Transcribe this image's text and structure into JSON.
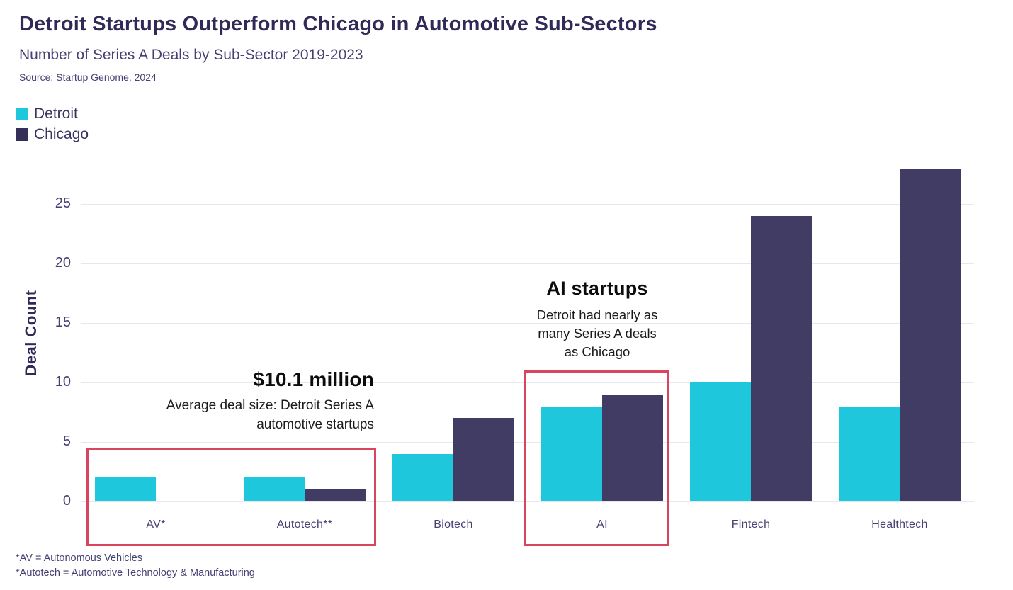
{
  "header": {
    "title": "Detroit Startups Outperform Chicago in Automotive Sub-Sectors",
    "subtitle": "Number of Series A Deals by Sub-Sector 2019-2023",
    "source": "Source: Startup Genome, 2024"
  },
  "legend": [
    {
      "label": "Detroit",
      "color": "#1ec7db"
    },
    {
      "label": "Chicago",
      "color": "#342f58"
    }
  ],
  "chart_data": {
    "type": "bar",
    "title": "Detroit Startups Outperform Chicago in Automotive Sub-Sectors",
    "categories": [
      "AV*",
      "Autotech**",
      "Biotech",
      "AI",
      "Fintech",
      "Healthtech"
    ],
    "series": [
      {
        "name": "Detroit",
        "color": "#1ec7db",
        "values": [
          2,
          2,
          4,
          8,
          10,
          8
        ]
      },
      {
        "name": "Chicago",
        "color": "#413c64",
        "values": [
          0,
          1,
          7,
          9,
          24,
          28
        ]
      }
    ],
    "xlabel": "",
    "ylabel": "Deal Count",
    "yticks": [
      0,
      5,
      10,
      15,
      20,
      25
    ],
    "ylim": [
      0,
      28.5
    ],
    "grid": true,
    "legend_position": "top-left"
  },
  "annotations": {
    "deal_size": {
      "title": "$10.1 million",
      "line1": "Average deal size: Detroit Series A",
      "line2": "automotive startups"
    },
    "ai_startups": {
      "title": "AI startups",
      "line1": "Detroit had nearly as",
      "line2": "many Series A deals",
      "line3": "as Chicago"
    }
  },
  "highlight_color": "#d9455f",
  "footnotes": [
    "*AV = Autonomous Vehicles",
    "*Autotech = Automotive Technology & Manufacturing"
  ]
}
